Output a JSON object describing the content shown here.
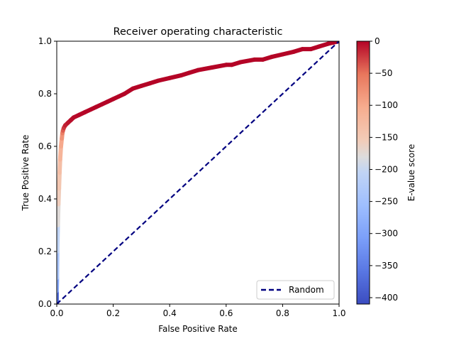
{
  "chart_data": {
    "type": "line",
    "title": "Receiver operating characteristic",
    "xlabel": "False Positive Rate",
    "ylabel": "True Positive Rate",
    "xlim": [
      0,
      1
    ],
    "ylim": [
      0,
      1
    ],
    "xticks": [
      "0.0",
      "0.2",
      "0.4",
      "0.6",
      "0.8",
      "1.0"
    ],
    "yticks": [
      "0.0",
      "0.2",
      "0.4",
      "0.6",
      "0.8",
      "1.0"
    ],
    "grid": false,
    "legend": {
      "entries": [
        "Random"
      ],
      "placement": "lower-right"
    },
    "series": [
      {
        "role": "roc-curve",
        "style": "thick line colored by E-value score (coolwarm colormap)",
        "x": [
          0.0,
          0.0,
          0.001,
          0.002,
          0.004,
          0.006,
          0.008,
          0.01,
          0.012,
          0.015,
          0.018,
          0.02,
          0.022,
          0.025,
          0.03,
          0.04,
          0.05,
          0.06,
          0.08,
          0.1,
          0.12,
          0.14,
          0.16,
          0.18,
          0.2,
          0.22,
          0.24,
          0.27,
          0.3,
          0.33,
          0.36,
          0.4,
          0.44,
          0.47,
          0.5,
          0.55,
          0.6,
          0.62,
          0.65,
          0.7,
          0.73,
          0.76,
          0.8,
          0.84,
          0.87,
          0.9,
          0.93,
          0.96,
          0.98,
          1.0
        ],
        "y": [
          0.0,
          0.05,
          0.1,
          0.2,
          0.3,
          0.38,
          0.44,
          0.5,
          0.55,
          0.6,
          0.63,
          0.65,
          0.66,
          0.67,
          0.68,
          0.69,
          0.7,
          0.71,
          0.72,
          0.73,
          0.74,
          0.75,
          0.76,
          0.77,
          0.78,
          0.79,
          0.8,
          0.82,
          0.83,
          0.84,
          0.85,
          0.86,
          0.87,
          0.88,
          0.89,
          0.9,
          0.91,
          0.91,
          0.92,
          0.93,
          0.93,
          0.94,
          0.95,
          0.96,
          0.97,
          0.97,
          0.98,
          0.99,
          0.995,
          1.0
        ],
        "score": [
          -410,
          -330,
          -260,
          -220,
          -190,
          -165,
          -150,
          -140,
          -125,
          -110,
          -90,
          -70,
          -50,
          -30,
          -15,
          -10,
          -5,
          -3,
          -2,
          -1,
          0,
          0,
          0,
          0,
          0,
          0,
          0,
          0,
          0,
          0,
          0,
          0,
          0,
          0,
          0,
          0,
          0,
          0,
          0,
          0,
          0,
          0,
          0,
          0,
          0,
          0,
          0,
          0,
          0,
          0
        ]
      },
      {
        "name": "Random",
        "style": "dashed",
        "color": "#000080",
        "x": [
          0,
          1
        ],
        "y": [
          0,
          1
        ]
      }
    ],
    "colorbar": {
      "label": "E-value score",
      "colormap": "coolwarm",
      "range": [
        -410,
        0
      ],
      "ticks": [
        0,
        -50,
        -100,
        -150,
        -200,
        -250,
        -300,
        -350,
        -400
      ],
      "tick_labels": [
        "0",
        "−50",
        "−100",
        "−150",
        "−200",
        "−250",
        "−300",
        "−350",
        "−400"
      ]
    },
    "colors": {
      "cool": "#3b4cc0",
      "neutral": "#dddddd",
      "warm": "#b40426",
      "random_line": "#000080"
    }
  }
}
